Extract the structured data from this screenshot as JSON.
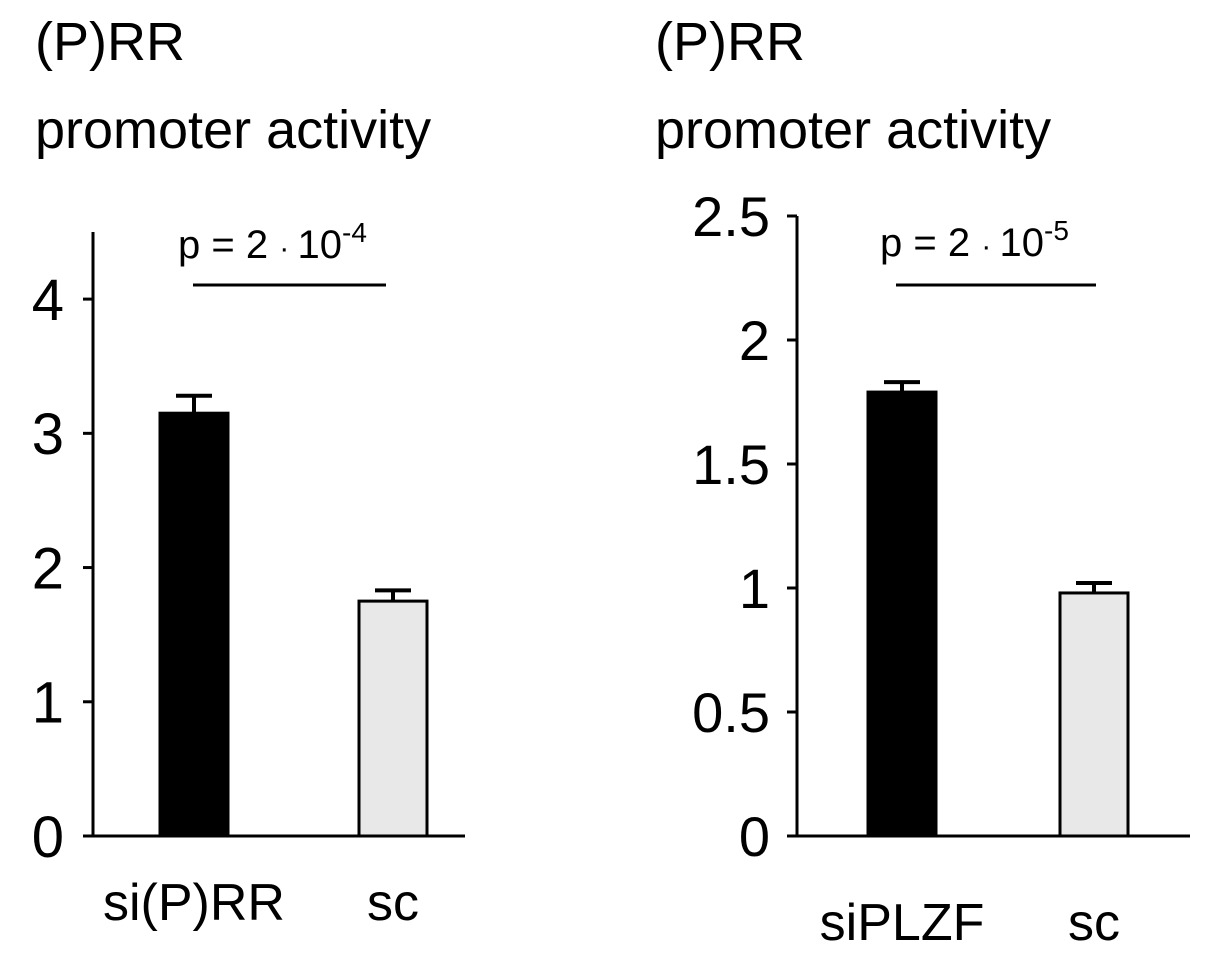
{
  "colors": {
    "axis": "#000000",
    "background": "#ffffff"
  },
  "chart_data": [
    {
      "type": "bar",
      "title_lines": [
        "(P)RR",
        "promoter activity"
      ],
      "xlabel": "",
      "ylabel": "",
      "categories": [
        "si(P)RR",
        "sc"
      ],
      "values": [
        3.15,
        1.75
      ],
      "errors": [
        0.13,
        0.08
      ],
      "bar_colors": [
        "#000000",
        "#e8e8e8"
      ],
      "ylim": [
        0,
        4.5
      ],
      "yticks": [
        0,
        1,
        2,
        3,
        4
      ],
      "ytick_labels": [
        "0",
        "1",
        "2",
        "3",
        "4"
      ],
      "significance": {
        "text": "p = 2",
        "dot": "·",
        "base": "10",
        "exponent": "-4"
      },
      "grid": false,
      "legend": "none"
    },
    {
      "type": "bar",
      "title_lines": [
        "(P)RR",
        "promoter activity"
      ],
      "xlabel": "",
      "ylabel": "",
      "categories": [
        "siPLZF",
        "sc"
      ],
      "values": [
        1.79,
        0.98
      ],
      "errors": [
        0.04,
        0.04
      ],
      "bar_colors": [
        "#000000",
        "#e8e8e8"
      ],
      "ylim": [
        0,
        2.5
      ],
      "yticks": [
        0,
        0.5,
        1,
        1.5,
        2,
        2.5
      ],
      "ytick_labels": [
        "0",
        "0.5",
        "1",
        "1.5",
        "2",
        "2.5"
      ],
      "significance": {
        "text": "p = 2",
        "dot": "·",
        "base": "10",
        "exponent": "-5"
      },
      "grid": false,
      "legend": "none"
    }
  ]
}
